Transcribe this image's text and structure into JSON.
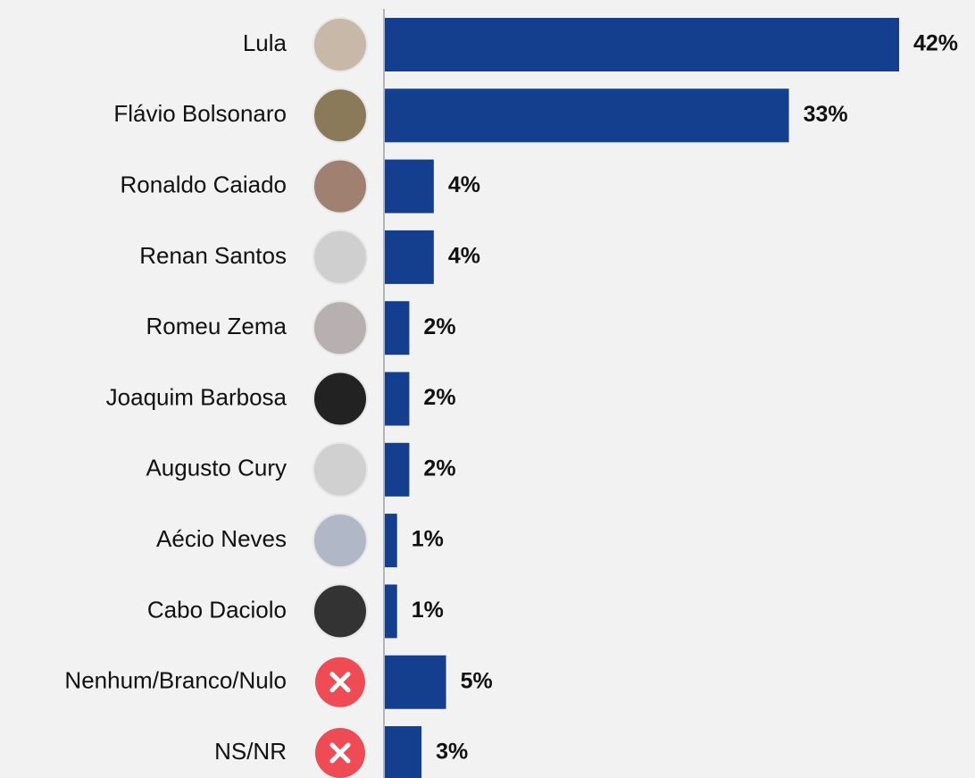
{
  "chart_data": {
    "type": "bar",
    "orientation": "horizontal",
    "color": "#143f8f",
    "categories": [
      "Lula",
      "Flávio Bolsonaro",
      "Ronaldo Caiado",
      "Renan Santos",
      "Romeu Zema",
      "Joaquim Barbosa",
      "Augusto Cury",
      "Aécio Neves",
      "Cabo Daciolo",
      "Nenhum/Branco/Nulo",
      "NS/NR"
    ],
    "values": [
      42,
      33,
      4,
      4,
      2,
      2,
      2,
      1,
      1,
      5,
      3
    ],
    "value_labels": [
      "42%",
      "33%",
      "4%",
      "4%",
      "2%",
      "2%",
      "2%",
      "1%",
      "1%",
      "5%",
      "3%"
    ]
  }
}
